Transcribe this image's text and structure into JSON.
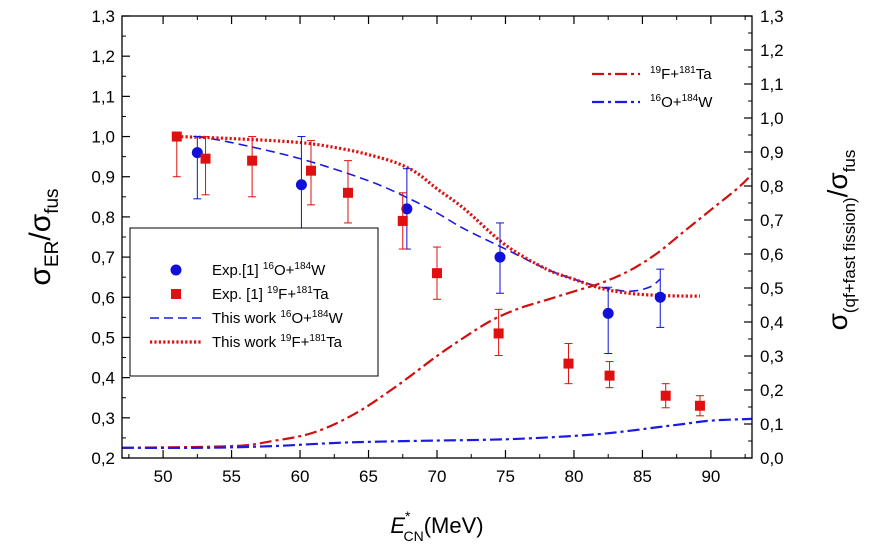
{
  "chart_data": {
    "type": "scatter",
    "xlabel": {
      "main": "E",
      "sup": "*",
      "sub": "CN",
      "unit": "(MeV)"
    },
    "ylabel_left": {
      "main": "σ",
      "sub1": "ER",
      "slash": "/σ",
      "sub2": "fus"
    },
    "ylabel_right": {
      "main": "σ",
      "sub1": "(qf+fast fission)",
      "slash": "/σ",
      "sub2": "fus"
    },
    "xlim": [
      47,
      93
    ],
    "ylim_left": [
      0.2,
      1.3
    ],
    "ylim_right": [
      0.0,
      1.3
    ],
    "x_ticks": [
      "50",
      "55",
      "60",
      "65",
      "70",
      "75",
      "80",
      "85",
      "90"
    ],
    "y_left_ticks": [
      "0,2",
      "0,3",
      "0,4",
      "0,5",
      "0,6",
      "0,7",
      "0,8",
      "0,9",
      "1,0",
      "1,1",
      "1,2",
      "1,3"
    ],
    "y_right_ticks": [
      "0,0",
      "0,1",
      "0,2",
      "0,3",
      "0,4",
      "0,5",
      "0,6",
      "0,7",
      "0,8",
      "0,9",
      "1,0",
      "1,1",
      "1,2",
      "1,3"
    ],
    "colors": {
      "blue": "#1010d8",
      "red": "#e01010",
      "redline": "#d01010",
      "bluedash": "#1a1ae0"
    },
    "series": [
      {
        "key": "exp_o",
        "marker": "circle",
        "color": "#1010d8",
        "axis": "left",
        "points": [
          {
            "x": 52.5,
            "y": 0.96,
            "lo": 0.845,
            "hi": 1.0
          },
          {
            "x": 60.1,
            "y": 0.88,
            "lo": 0.74,
            "hi": 1.0
          },
          {
            "x": 67.8,
            "y": 0.82,
            "lo": 0.72,
            "hi": 0.92
          },
          {
            "x": 74.6,
            "y": 0.7,
            "lo": 0.61,
            "hi": 0.785
          },
          {
            "x": 82.5,
            "y": 0.56,
            "lo": 0.46,
            "hi": 0.625
          },
          {
            "x": 86.3,
            "y": 0.6,
            "lo": 0.525,
            "hi": 0.67
          }
        ]
      },
      {
        "key": "exp_f",
        "marker": "square",
        "color": "#e01010",
        "axis": "left",
        "points": [
          {
            "x": 51.0,
            "y": 1.0,
            "lo": 0.9,
            "hi": 1.0
          },
          {
            "x": 53.1,
            "y": 0.945,
            "lo": 0.855,
            "hi": 1.0
          },
          {
            "x": 56.5,
            "y": 0.94,
            "lo": 0.85,
            "hi": 1.0
          },
          {
            "x": 60.8,
            "y": 0.915,
            "lo": 0.83,
            "hi": 0.99
          },
          {
            "x": 63.5,
            "y": 0.86,
            "lo": 0.785,
            "hi": 0.94
          },
          {
            "x": 67.5,
            "y": 0.79,
            "lo": 0.72,
            "hi": 0.86
          },
          {
            "x": 70.0,
            "y": 0.66,
            "lo": 0.595,
            "hi": 0.725
          },
          {
            "x": 74.5,
            "y": 0.51,
            "lo": 0.455,
            "hi": 0.57
          },
          {
            "x": 79.6,
            "y": 0.435,
            "lo": 0.385,
            "hi": 0.485
          },
          {
            "x": 82.6,
            "y": 0.405,
            "lo": 0.375,
            "hi": 0.44
          },
          {
            "x": 86.7,
            "y": 0.355,
            "lo": 0.325,
            "hi": 0.385
          },
          {
            "x": 89.2,
            "y": 0.33,
            "lo": 0.305,
            "hi": 0.355
          }
        ]
      },
      {
        "key": "this_o",
        "line": "dash",
        "color": "#1a1ae0",
        "axis": "left",
        "points": [
          [
            52.5,
            1.0
          ],
          [
            55,
            0.985
          ],
          [
            60,
            0.945
          ],
          [
            65,
            0.89
          ],
          [
            68,
            0.845
          ],
          [
            70,
            0.81
          ],
          [
            72,
            0.77
          ],
          [
            75,
            0.72
          ],
          [
            78,
            0.67
          ],
          [
            80,
            0.645
          ],
          [
            82,
            0.625
          ],
          [
            84,
            0.615
          ],
          [
            85.5,
            0.625
          ],
          [
            86.3,
            0.645
          ]
        ]
      },
      {
        "key": "this_f",
        "line": "dot",
        "color": "#e01010",
        "axis": "left",
        "points": [
          [
            51,
            1.0
          ],
          [
            55,
            0.995
          ],
          [
            60,
            0.985
          ],
          [
            63,
            0.97
          ],
          [
            65,
            0.955
          ],
          [
            67,
            0.935
          ],
          [
            68.5,
            0.91
          ],
          [
            70,
            0.87
          ],
          [
            72,
            0.82
          ],
          [
            75,
            0.73
          ],
          [
            78,
            0.67
          ],
          [
            80,
            0.645
          ],
          [
            82,
            0.622
          ],
          [
            84,
            0.61
          ],
          [
            86,
            0.605
          ],
          [
            88,
            0.603
          ],
          [
            89.2,
            0.603
          ]
        ]
      },
      {
        "key": "f_ta",
        "line": "dashdot",
        "color": "#d01010",
        "axis": "right",
        "points": [
          [
            47,
            0.03
          ],
          [
            55,
            0.035
          ],
          [
            58,
            0.05
          ],
          [
            61,
            0.075
          ],
          [
            64,
            0.13
          ],
          [
            67,
            0.21
          ],
          [
            70,
            0.3
          ],
          [
            72,
            0.355
          ],
          [
            74,
            0.405
          ],
          [
            76,
            0.44
          ],
          [
            78,
            0.465
          ],
          [
            80,
            0.49
          ],
          [
            82,
            0.515
          ],
          [
            84,
            0.55
          ],
          [
            86,
            0.6
          ],
          [
            88,
            0.665
          ],
          [
            90,
            0.73
          ],
          [
            92,
            0.795
          ],
          [
            93,
            0.835
          ]
        ]
      },
      {
        "key": "o_w",
        "line": "dashdot",
        "color": "#1a1ae0",
        "axis": "right",
        "points": [
          [
            47,
            0.03
          ],
          [
            53,
            0.03
          ],
          [
            58,
            0.035
          ],
          [
            63,
            0.045
          ],
          [
            68,
            0.05
          ],
          [
            75,
            0.055
          ],
          [
            80,
            0.065
          ],
          [
            83,
            0.075
          ],
          [
            86,
            0.09
          ],
          [
            88,
            0.1
          ],
          [
            90,
            0.11
          ],
          [
            93,
            0.115
          ]
        ]
      }
    ],
    "legend_main": {
      "placement": "left-middle",
      "entries": [
        {
          "key": "exp_o",
          "label": "Exp.[1] ",
          "iso1": "16",
          "nuc1": "O+",
          "iso2": "184",
          "nuc2": "W"
        },
        {
          "key": "exp_f",
          "label": "Exp. [1]  ",
          "iso1": "19",
          "nuc1": "F+",
          "iso2": "181",
          "nuc2": "Ta"
        },
        {
          "key": "this_o",
          "label": "This work ",
          "iso1": "16",
          "nuc1": "O+",
          "iso2": "184",
          "nuc2": "W"
        },
        {
          "key": "this_f",
          "label": "This work ",
          "iso1": "19",
          "nuc1": "F+",
          "iso2": "181",
          "nuc2": "Ta"
        }
      ]
    },
    "legend_right": {
      "placement": "top-right",
      "entries": [
        {
          "key": "f_ta",
          "label": "",
          "iso1": "19",
          "nuc1": "F+",
          "iso2": "181",
          "nuc2": "Ta"
        },
        {
          "key": "o_w",
          "label": "",
          "iso1": "16",
          "nuc1": "O+",
          "iso2": "184",
          "nuc2": "W"
        }
      ]
    }
  }
}
